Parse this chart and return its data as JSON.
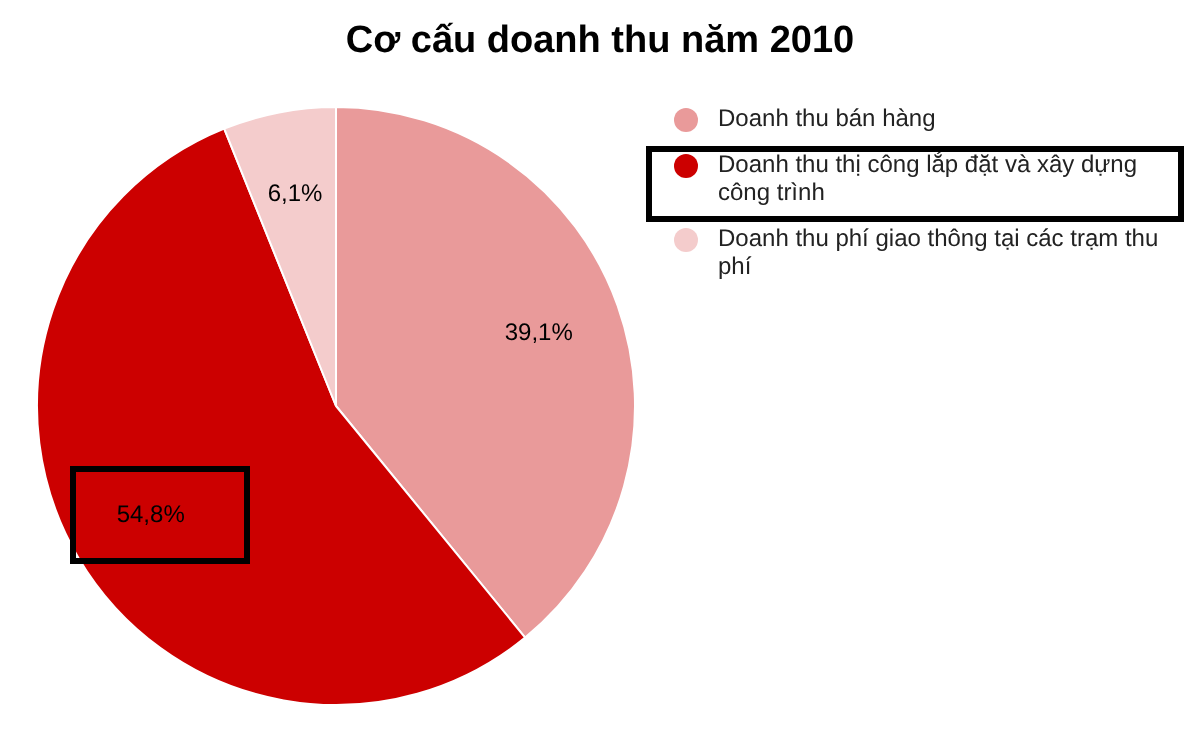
{
  "chart_data": {
    "type": "pie",
    "title": "Cơ cấu doanh thu năm 2010",
    "categories": [
      "Doanh thu bán hàng",
      "Doanh thu thị công lắp đặt và xây dựng công trình",
      "Doanh thu phí giao thông tại các trạm thu phí"
    ],
    "values": [
      39.1,
      54.8,
      6.1
    ],
    "colors": [
      "#e99a9a",
      "#cc0000",
      "#f4cccc"
    ],
    "value_labels": [
      "39,1%",
      "54,8%",
      "6,1%"
    ],
    "legend": "top right"
  }
}
